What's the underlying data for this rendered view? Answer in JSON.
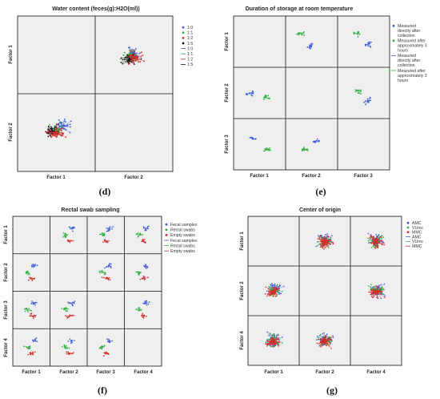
{
  "chart_data": [
    {
      "type": "scatter",
      "panel": "(d)",
      "title": "Water content (feces(g):H2O(ml))",
      "factors": [
        "Factor 1",
        "Factor 2"
      ],
      "row_labels": [
        "Factor 1",
        "Factor 2"
      ],
      "col_labels": [
        "Factor 1",
        "Factor 2"
      ],
      "series": [
        {
          "name": "1:0",
          "color": "#3b5bd6"
        },
        {
          "name": "1:1",
          "color": "#2fae3f"
        },
        {
          "name": "1:2",
          "color": "#d62a2a"
        },
        {
          "name": "1:5",
          "color": "#111111"
        }
      ],
      "legend_lines": [
        "1:0",
        "1:1",
        "1:2",
        "1:5"
      ]
    },
    {
      "type": "scatter",
      "panel": "(e)",
      "title": "Duration of storage at room temperature",
      "factors": [
        "Factor 1",
        "Factor 2",
        "Factor 3"
      ],
      "row_labels": [
        "Factor 1",
        "Factor 2",
        "Factor 3"
      ],
      "col_labels": [
        "Factor 1",
        "Factor 2",
        "Factor 3"
      ],
      "series": [
        {
          "name": "Measured directly after collection",
          "color": "#3b5bd6"
        },
        {
          "name": "Measured after approximately 3 hours",
          "color": "#2fae3f"
        }
      ],
      "legend_lines": [
        "Measured directly after collection",
        "Measured after approximately 3 hours"
      ]
    },
    {
      "type": "scatter",
      "panel": "(f)",
      "title": "Rectal swab sampling",
      "factors": [
        "Factor 1",
        "Factor 2",
        "Factor 3",
        "Factor 4"
      ],
      "row_labels": [
        "Factor 1",
        "Factor 2",
        "Factor 3",
        "Factor 4"
      ],
      "col_labels": [
        "Factor 1",
        "Factor 2",
        "Factor 3",
        "Factor 4"
      ],
      "series": [
        {
          "name": "Fecal samples",
          "color": "#3b5bd6"
        },
        {
          "name": "Rectal swabs",
          "color": "#2fae3f"
        },
        {
          "name": "Empty swabs",
          "color": "#d62a2a"
        }
      ],
      "legend_lines": [
        "Fecal samples",
        "Rectal swabs",
        "Empty swabs"
      ]
    },
    {
      "type": "scatter",
      "panel": "(g)",
      "title": "Center of origin",
      "factors": [
        "Factor 1",
        "Factor 2",
        "Factor 4"
      ],
      "row_labels": [
        "Factor 1",
        "Factor 2",
        "Factor 4"
      ],
      "col_labels": [
        "Factor 1",
        "Factor 2",
        "Factor 4"
      ],
      "series": [
        {
          "name": "AMC",
          "color": "#3b5bd6"
        },
        {
          "name": "VUmc",
          "color": "#2fae3f"
        },
        {
          "name": "MMC",
          "color": "#d62a2a"
        }
      ],
      "legend_lines": [
        "AMC",
        "VUmc",
        "MMC"
      ]
    }
  ]
}
